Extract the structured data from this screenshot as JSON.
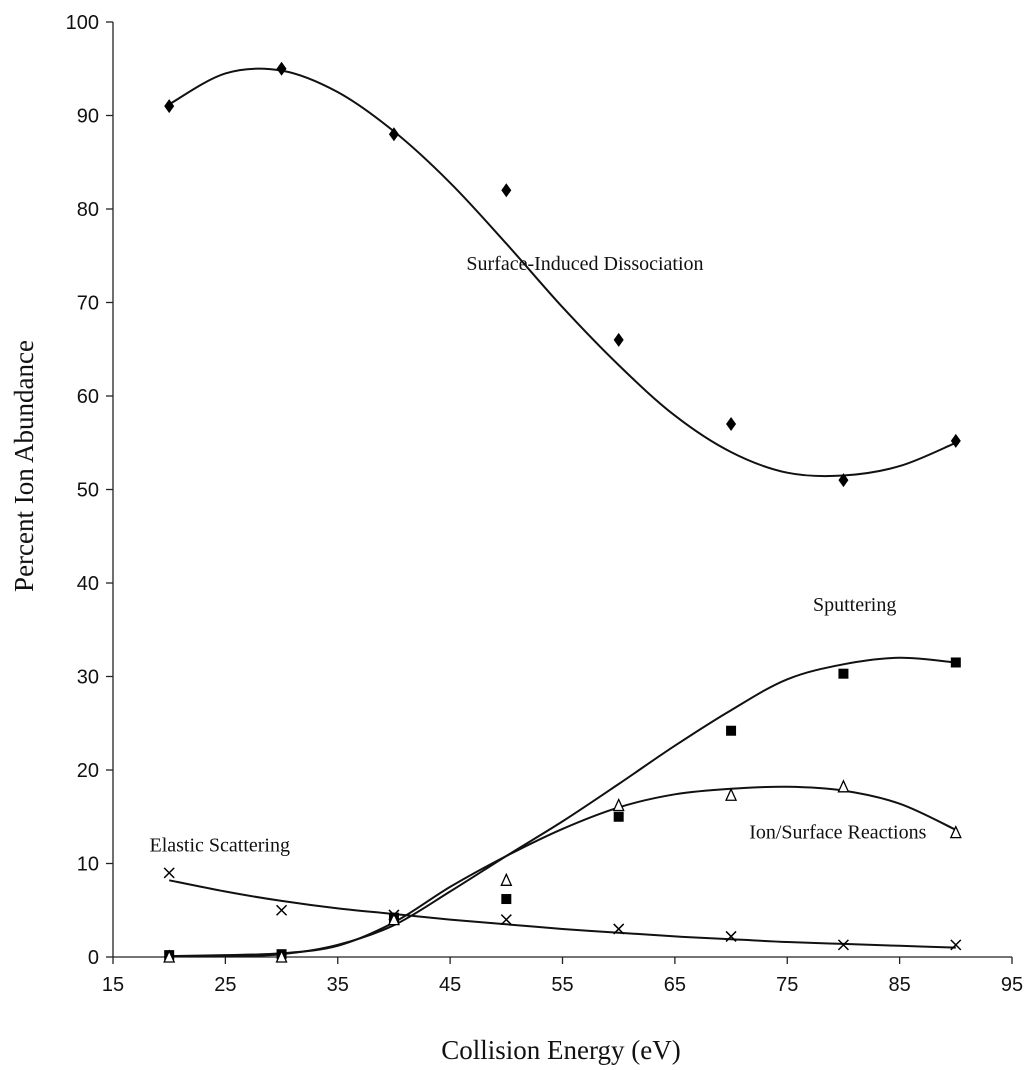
{
  "chart_data": {
    "type": "scatter",
    "title": "",
    "xlabel": "Collision Energy (eV)",
    "ylabel": "Percent Ion Abundance",
    "xlim": [
      15,
      95
    ],
    "ylim": [
      0,
      100
    ],
    "xticks": [
      "15",
      "25",
      "35",
      "45",
      "55",
      "65",
      "75",
      "85",
      "95"
    ],
    "yticks": [
      "0",
      "10",
      "20",
      "30",
      "40",
      "50",
      "60",
      "70",
      "80",
      "90",
      "100"
    ],
    "grid": false,
    "x": [
      20,
      30,
      40,
      50,
      60,
      70,
      80,
      90
    ],
    "series": [
      {
        "name": "Surface-Induced Dissociation",
        "marker": "diamond",
        "values": [
          91,
          95,
          88,
          82,
          66,
          57,
          51,
          55.2
        ],
        "fit": [
          [
            20,
            91.2
          ],
          [
            25,
            94.5
          ],
          [
            30,
            94.8
          ],
          [
            35,
            92.5
          ],
          [
            40,
            88.3
          ],
          [
            45,
            82.8
          ],
          [
            50,
            76.3
          ],
          [
            55,
            69.5
          ],
          [
            60,
            63.3
          ],
          [
            65,
            57.9
          ],
          [
            70,
            54.0
          ],
          [
            75,
            51.8
          ],
          [
            80,
            51.5
          ],
          [
            85,
            52.5
          ],
          [
            90,
            55.0
          ]
        ],
        "label_anchor": [
          57,
          73.5
        ]
      },
      {
        "name": "Sputtering",
        "marker": "square",
        "values": [
          0.2,
          0.3,
          4.2,
          6.2,
          15,
          24.2,
          30.3,
          31.5
        ],
        "fit": [
          [
            20,
            0.1
          ],
          [
            25,
            0.1
          ],
          [
            30,
            0.3
          ],
          [
            35,
            1.3
          ],
          [
            40,
            3.4
          ],
          [
            45,
            7.0
          ],
          [
            50,
            10.8
          ],
          [
            55,
            14.5
          ],
          [
            60,
            18.5
          ],
          [
            65,
            22.6
          ],
          [
            70,
            26.4
          ],
          [
            75,
            29.7
          ],
          [
            80,
            31.3
          ],
          [
            85,
            32.0
          ],
          [
            90,
            31.5
          ]
        ],
        "label_anchor": [
          81,
          37
        ]
      },
      {
        "name": "Ion/Surface Reactions",
        "marker": "triangle",
        "values": [
          0,
          0,
          4,
          8.2,
          16.2,
          17.3,
          18.2,
          13.3
        ],
        "fit": [
          [
            20,
            0.1
          ],
          [
            25,
            0.2
          ],
          [
            30,
            0.4
          ],
          [
            35,
            1.2
          ],
          [
            40,
            3.7
          ],
          [
            45,
            7.5
          ],
          [
            50,
            10.8
          ],
          [
            55,
            13.7
          ],
          [
            60,
            16.0
          ],
          [
            65,
            17.4
          ],
          [
            70,
            18.0
          ],
          [
            75,
            18.2
          ],
          [
            80,
            17.8
          ],
          [
            85,
            16.4
          ],
          [
            90,
            13.6
          ]
        ],
        "label_anchor": [
          79.5,
          12.7
        ]
      },
      {
        "name": "Elastic Scattering",
        "marker": "x",
        "values": [
          9,
          5,
          4.5,
          4,
          3,
          2.2,
          1.3,
          1.3
        ],
        "fit": [
          [
            20,
            8.2
          ],
          [
            25,
            7.0
          ],
          [
            30,
            6.0
          ],
          [
            35,
            5.2
          ],
          [
            40,
            4.6
          ],
          [
            45,
            4.0
          ],
          [
            50,
            3.5
          ],
          [
            55,
            3.0
          ],
          [
            60,
            2.6
          ],
          [
            65,
            2.2
          ],
          [
            70,
            1.9
          ],
          [
            75,
            1.6
          ],
          [
            80,
            1.4
          ],
          [
            85,
            1.2
          ],
          [
            90,
            1.0
          ]
        ],
        "label_anchor": [
          24.5,
          11.3
        ]
      }
    ]
  }
}
